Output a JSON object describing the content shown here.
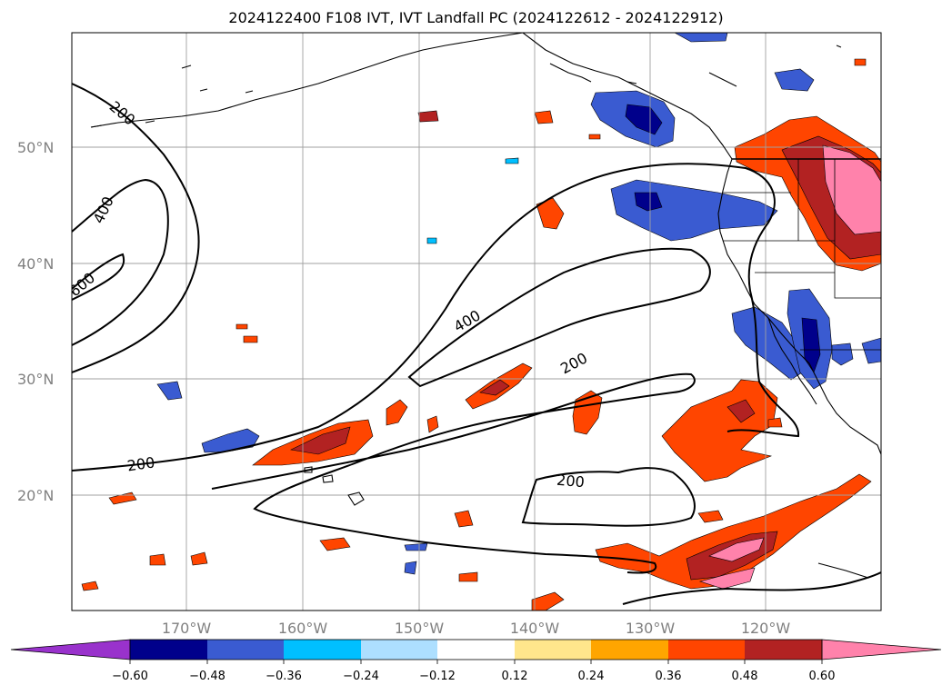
{
  "title": "2024122400 F108 IVT, IVT Landfall PC (2024122612 - 2024122912)",
  "latitude_labels": [
    "50°N",
    "40°N",
    "30°N",
    "20°N"
  ],
  "longitude_labels": [
    "170°W",
    "160°W",
    "150°W",
    "140°W",
    "130°W",
    "120°W"
  ],
  "contour_labels": [
    "200",
    "400",
    "600",
    "400",
    "200",
    "200",
    "200"
  ],
  "colorbar": {
    "tick_labels": [
      "−0.60",
      "−0.48",
      "−0.36",
      "−0.24",
      "−0.12",
      "0.12",
      "0.24",
      "0.36",
      "0.48",
      "0.60"
    ],
    "colors": [
      "#9932CC",
      "#00008B",
      "#3A5BD1",
      "#00BFFF",
      "#ADDFFF",
      "#FFFFFF",
      "#FFE68C",
      "#FFA500",
      "#FF4500",
      "#B22222",
      "#FF82AB"
    ]
  },
  "colors": {
    "contour": "#000000",
    "grid": "#a0a0a0",
    "coastline": "#000000",
    "axis_labels": "#808080"
  }
}
